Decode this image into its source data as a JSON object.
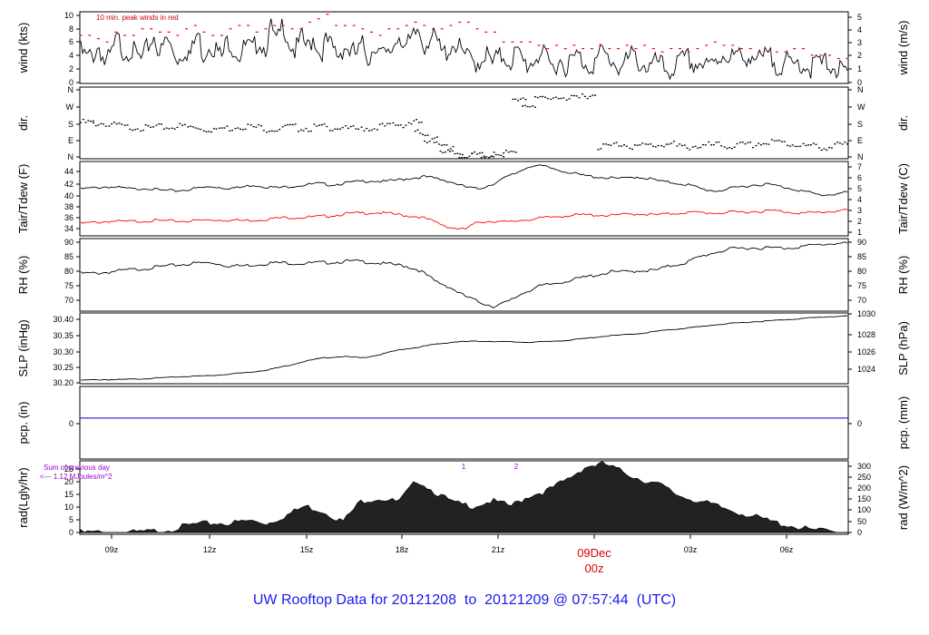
{
  "footer_title": "UW Rooftop Data for 20121208  to  20121209 @ 07:57:44  (UTC)",
  "peak_note": "10 min. peak winds in red",
  "rad_note1": "Sum of previous day",
  "rad_note2": "<--- 1.12 MJoules/m^2",
  "date_label": "09Dec",
  "zero_label": "00z",
  "colors": {
    "trace": "#000000",
    "peak": "#ff0000",
    "dew": "#ff0000",
    "pcp": "#0000cc",
    "note": "#9900cc",
    "title": "#0000ee"
  },
  "chart_data": [
    {
      "type": "line",
      "ylabel_left": "wind (kts)",
      "ylabel_right": "wind (m/s)",
      "yticks_left": [
        "0",
        "2",
        "4",
        "6",
        "8",
        "10"
      ],
      "yticks_right": [
        "0",
        "1",
        "2",
        "3",
        "4",
        "5"
      ],
      "ylim": [
        0,
        10.3
      ],
      "series": [
        {
          "name": "wind",
          "values": [
            4.5,
            3.5,
            4,
            5.5,
            2.5,
            4,
            6.5,
            4.5,
            5,
            4,
            3,
            5.5,
            7,
            4,
            6.5,
            4.5,
            3.5,
            5,
            4,
            7.5,
            4,
            6,
            5,
            3.5,
            6.5,
            5,
            4,
            5.5,
            4.5,
            6.5,
            5,
            8,
            5.5,
            9,
            6,
            4.5,
            6.5,
            5,
            7,
            4,
            6,
            5,
            4,
            5.5,
            4.5,
            4,
            5.5,
            3.5,
            6,
            4,
            3.5,
            5.5,
            7.5,
            5,
            6,
            8,
            5.5,
            7,
            6,
            4,
            5,
            6,
            4.5,
            3.5,
            3,
            3,
            4.5,
            2.5,
            3.5,
            4,
            3,
            4.5,
            3,
            2.5,
            3.5,
            4.5,
            3,
            2,
            3.5,
            2.5,
            3,
            4,
            3,
            2.5,
            3,
            4.5,
            3.5,
            3,
            2,
            3,
            4,
            3,
            2.5,
            2,
            3,
            2,
            1.5,
            2.5,
            3,
            3.5,
            2.5,
            3,
            2,
            2.5,
            3.5,
            4.5,
            3.5,
            4,
            3,
            4.5,
            3.5,
            3,
            4,
            3,
            2.5,
            3,
            2,
            3,
            2.5,
            2,
            3,
            2.5,
            3,
            2,
            1.5,
            1
          ]
        },
        {
          "name": "peak",
          "values": [
            7,
            7,
            6.5,
            6,
            7.5,
            7,
            7,
            8,
            8,
            7.5,
            7.5,
            7,
            8,
            8.5,
            7.5,
            7,
            7,
            8,
            8.5,
            8.5,
            7.5,
            8,
            8.5,
            8.5,
            8,
            8,
            9,
            9.5,
            10.2,
            8.5,
            8.5,
            8.5,
            8,
            7.5,
            7,
            8,
            8,
            8.5,
            9,
            8.5,
            8,
            8,
            8.5,
            9,
            9,
            8,
            7.5,
            7.5,
            6,
            6,
            6,
            6,
            5.5,
            5,
            5.5,
            5,
            5.5,
            5,
            5,
            5.5,
            5,
            5,
            5.5,
            5,
            5.5,
            5,
            4.5,
            5,
            5,
            4.5,
            5,
            5.5,
            6,
            5.5,
            5.5,
            5,
            5,
            4.5,
            4.5,
            4.5,
            4.5,
            5,
            5,
            4,
            4,
            4,
            3.5,
            3.5
          ]
        }
      ]
    },
    {
      "type": "scatter",
      "ylabel_left": "dir.",
      "ylabel_right": "dir.",
      "yticks_left": [
        "N",
        "E",
        "S",
        "W",
        "N"
      ],
      "yticks_right": [
        "N",
        "E",
        "S",
        "W",
        "N"
      ],
      "ylim": [
        0,
        360
      ],
      "series": [
        {
          "name": "direction",
          "x_hours": [
            7.6,
            8,
            8.5,
            9,
            9.5,
            10,
            10.5,
            11,
            11.5,
            12,
            12.5,
            13,
            13.5,
            14,
            14.5,
            15,
            15.5,
            16,
            16.5,
            17,
            17.5,
            18,
            18.2,
            18.5,
            18.8,
            19,
            19.3,
            19.6,
            20,
            20.3,
            20.6,
            21,
            21.3,
            21.6,
            22,
            22.5,
            23,
            23.5,
            24,
            24.5,
            25,
            25.5,
            26,
            26.5,
            27,
            27.5,
            28,
            28.5,
            29,
            29.5,
            30,
            30.5,
            31,
            31.5,
            31.9
          ],
          "values": [
            185,
            180,
            170,
            160,
            155,
            160,
            165,
            160,
            150,
            155,
            165,
            160,
            150,
            160,
            155,
            160,
            160,
            150,
            155,
            165,
            175,
            185,
            130,
            95,
            70,
            40,
            20,
            5,
            15,
            10,
            0,
            40,
            300,
            280,
            310,
            320,
            310,
            330,
            60,
            70,
            60,
            65,
            70,
            55,
            60,
            65,
            60,
            65,
            75,
            80,
            70,
            60,
            55,
            65,
            55
          ]
        }
      ]
    },
    {
      "type": "line",
      "ylabel_left": "Tair/Tdew (F)",
      "ylabel_right": "Tair/Tdew (C)",
      "yticks_left": [
        "34",
        "36",
        "38",
        "40",
        "42",
        "44"
      ],
      "yticks_right": [
        "1",
        "2",
        "3",
        "4",
        "5",
        "6",
        "7"
      ],
      "ylim": [
        33.5,
        45
      ],
      "series": [
        {
          "name": "Tair",
          "values": [
            40.8,
            41,
            41.2,
            41,
            40.8,
            41,
            40.6,
            40.5,
            40.7,
            41,
            41.2,
            41,
            41,
            41.5,
            41.2,
            41,
            41.3,
            41.5,
            41.7,
            41.5,
            41.8,
            42,
            42.2,
            42,
            42.3,
            42.6,
            42.8,
            42.5,
            42,
            41.2,
            40.8,
            41.5,
            42.5,
            43.5,
            44.6,
            44.5,
            44,
            43.5,
            43,
            42.8,
            42.6,
            42.5,
            42.8,
            42.5,
            42,
            41.8,
            41.5,
            40.8,
            40.5,
            40.8,
            41.2,
            41.5,
            41.6,
            41.2,
            40.8,
            40.3,
            39.8,
            40,
            40.3
          ]
        },
        {
          "name": "Tdew",
          "values": [
            35.2,
            35.4,
            35.6,
            35.5,
            35.6,
            35.7,
            35.6,
            35.6,
            35.7,
            35.8,
            35.8,
            35.7,
            35.8,
            36,
            36.2,
            36.2,
            36.3,
            36.5,
            36.8,
            36.9,
            37,
            36.8,
            36.5,
            36.3,
            35.5,
            34.6,
            34.2,
            35.5,
            35.6,
            35.4,
            35.8,
            36,
            36.3,
            36.5,
            36.6,
            36.6,
            36.5,
            36.7,
            36.8,
            36.6,
            36.8,
            37,
            37,
            36.9,
            37,
            37.1,
            37.2,
            37.3,
            37.1,
            36.9,
            37,
            37.2,
            37.4
          ]
        }
      ]
    },
    {
      "type": "line",
      "ylabel_left": "RH (%)",
      "ylabel_right": "RH (%)",
      "yticks_left": [
        "70",
        "75",
        "80",
        "85",
        "90"
      ],
      "yticks_right": [
        "70",
        "75",
        "80",
        "85",
        "90"
      ],
      "ylim": [
        67.5,
        90.5
      ],
      "series": [
        {
          "name": "RH",
          "values": [
            79.5,
            79.5,
            80,
            80.5,
            81,
            81.5,
            82,
            82.5,
            83,
            83,
            82,
            82,
            82.5,
            83,
            83,
            82.8,
            83,
            83.2,
            83.5,
            83.5,
            83,
            82.5,
            82,
            80.5,
            77,
            75,
            72,
            70,
            68.5,
            70,
            73,
            75,
            76,
            77,
            78,
            79,
            80,
            80,
            80.5,
            80.5,
            82,
            83,
            85,
            86.5,
            87.5,
            88,
            88,
            88,
            88,
            88.5,
            89,
            89.5,
            89.5
          ]
        }
      ]
    },
    {
      "type": "line",
      "ylabel_left": "SLP (inHg)",
      "ylabel_right": "SLP (hPa)",
      "yticks_left": [
        "30.20",
        "30.25",
        "30.30",
        "30.35",
        "30.40"
      ],
      "yticks_right": [
        "1024",
        "1026",
        "1028",
        "1030"
      ],
      "ylim": [
        30.2,
        30.41
      ],
      "series": [
        {
          "name": "SLP",
          "values": [
            30.205,
            30.207,
            30.207,
            30.209,
            30.212,
            30.215,
            30.218,
            30.22,
            30.225,
            30.23,
            30.238,
            30.25,
            30.265,
            30.275,
            30.28,
            30.275,
            30.285,
            30.3,
            30.308,
            30.318,
            30.325,
            30.327,
            30.327,
            30.325,
            30.324,
            30.326,
            30.33,
            30.336,
            30.343,
            30.347,
            30.352,
            30.36,
            30.366,
            30.372,
            30.379,
            30.384,
            30.388,
            30.392,
            30.396,
            30.4,
            30.404,
            30.406
          ]
        }
      ]
    },
    {
      "type": "line",
      "ylabel_left": "pcp. (in)",
      "ylabel_right": "pcp. (mm)",
      "yticks_left": [
        "0"
      ],
      "yticks_right": [
        "0"
      ],
      "ylim": [
        -2.1,
        1.6
      ],
      "series": [
        {
          "name": "pcp",
          "values": [
            0
          ]
        }
      ]
    },
    {
      "type": "area",
      "ylabel_left": "rad(Lgly/hr)",
      "ylabel_right": "rad (W/m^2)",
      "yticks_left": [
        "0",
        "5",
        "10",
        "15",
        "20",
        "25"
      ],
      "yticks_right": [
        "0",
        "50",
        "100",
        "150",
        "200",
        "250",
        "300"
      ],
      "ylim": [
        0,
        26.5
      ],
      "markers": [
        "1",
        "2"
      ],
      "series": [
        {
          "name": "rad",
          "values": [
            0,
            0,
            0,
            0,
            0.5,
            1.5,
            3,
            3.5,
            3.5,
            4.5,
            3.5,
            6.5,
            10,
            8,
            4,
            12,
            13,
            11.5,
            20,
            15,
            11,
            10,
            12,
            10,
            14,
            16,
            20,
            25,
            26,
            23,
            20,
            18,
            14,
            12,
            10,
            8,
            6,
            4,
            2.5,
            1,
            0.5,
            0
          ]
        }
      ]
    }
  ],
  "x_axis": {
    "tick_labels": [
      "09z",
      "12z",
      "15z",
      "18z",
      "21z",
      "03z",
      "06z"
    ],
    "range_hours": [
      "07:36z",
      "31:57z"
    ]
  }
}
